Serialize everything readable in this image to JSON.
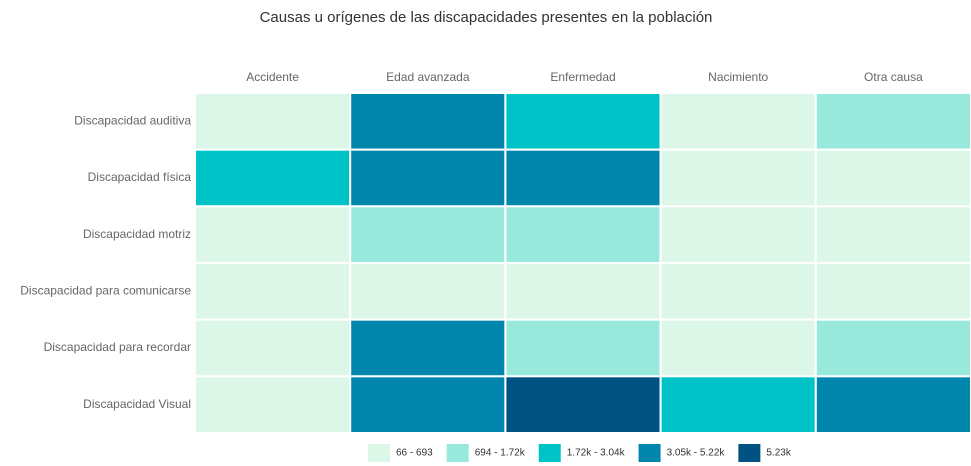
{
  "chart_data": {
    "type": "heatmap",
    "title": "Causas u orígenes de las discapacidades presentes en la población",
    "x": [
      "Accidente",
      "Edad avanzada",
      "Enfermedad",
      "Nacimiento",
      "Otra causa"
    ],
    "y": [
      "Discapacidad auditiva",
      "Discapacidad física",
      "Discapacidad motriz",
      "Discapacidad para comunicarse",
      "Discapacidad para recordar",
      "Discapacidad Visual"
    ],
    "values": [
      [
        300,
        4200,
        2400,
        500,
        1100
      ],
      [
        2000,
        4500,
        4000,
        400,
        450
      ],
      [
        200,
        1000,
        1200,
        150,
        250
      ],
      [
        66,
        150,
        300,
        350,
        100
      ],
      [
        120,
        3500,
        900,
        200,
        800
      ],
      [
        250,
        4300,
        6000,
        2200,
        3900
      ]
    ],
    "legend": [
      {
        "label": "66 - 693",
        "color": "#dcf7e8",
        "from": 66,
        "to": 693
      },
      {
        "label": "694 - 1.72k",
        "color": "#98e9dc",
        "from": 694,
        "to": 1720
      },
      {
        "label": "1.72k - 3.04k",
        "color": "#00c3c7",
        "from": 1720,
        "to": 3040
      },
      {
        "label": "3.05k - 5.22k",
        "color": "#0085ad",
        "from": 3050,
        "to": 5220
      },
      {
        "label": "5.23k",
        "color": "#005282",
        "from": 5230
      }
    ]
  }
}
